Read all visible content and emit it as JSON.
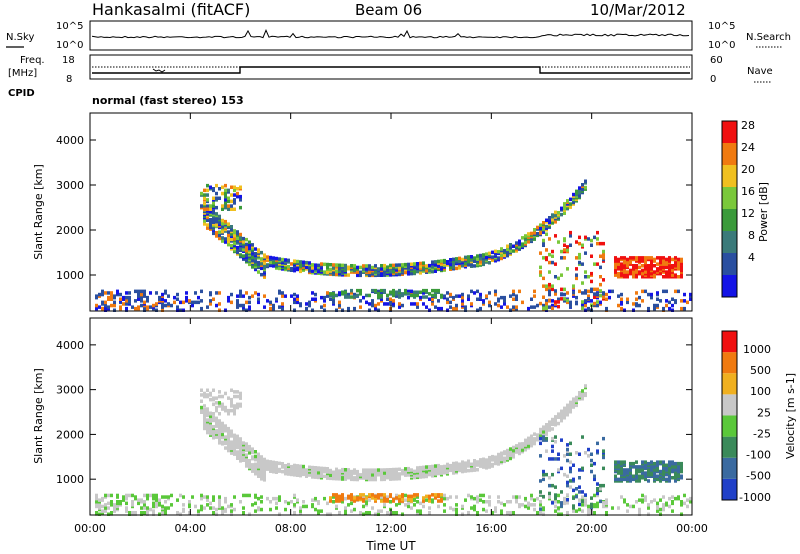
{
  "header": {
    "station": "Hankasalmi (fitACF)",
    "beam": "Beam 06",
    "date": "10/Mar/2012"
  },
  "noise_panel": {
    "left_label": "N.Sky",
    "right_label": "N.Search",
    "left_ticks": [
      "10^5",
      "10^0"
    ],
    "right_ticks": [
      "10^5",
      "10^0"
    ]
  },
  "freq_panel": {
    "left_label_line1": "Freq.",
    "left_label_line2": "[MHz]",
    "left_ticks": [
      "18",
      "8"
    ],
    "right_ticks": [
      "60",
      "0"
    ],
    "right_label": "Nave",
    "cpid_label": "CPID"
  },
  "mode_label": "normal (fast stereo) 153",
  "chart_data": [
    {
      "type": "heatmap",
      "panel": "power",
      "ylabel": "Slant Range [km]",
      "yticks": [
        "4000",
        "3000",
        "2000",
        "1000"
      ],
      "ylim": [
        200,
        4600
      ],
      "xlim_hours": [
        0,
        24
      ],
      "colorbar_label": "Power [dB]",
      "colorbar_ticks": [
        "28",
        "24",
        "20",
        "16",
        "12",
        "8",
        "4"
      ],
      "colors": [
        "#1414e6",
        "#2a4fa0",
        "#3a7a7a",
        "#3a9a3a",
        "#7ac83a",
        "#f0c020",
        "#f07a10",
        "#f01010"
      ],
      "features": [
        {
          "name": "main arc",
          "hours": [
            4.5,
            19.8
          ],
          "range_km": [
            1150,
            3100
          ]
        },
        {
          "name": "near-range echoes",
          "hours": [
            0.3,
            24
          ],
          "range_km": [
            200,
            600
          ]
        },
        {
          "name": "strong patches",
          "hours": [
            20.8,
            23.6
          ],
          "range_km": [
            1000,
            1450
          ]
        }
      ]
    },
    {
      "type": "heatmap",
      "panel": "velocity",
      "ylabel": "Slant Range [km]",
      "yticks": [
        "4000",
        "3000",
        "2000",
        "1000"
      ],
      "ylim": [
        200,
        4600
      ],
      "colorbar_label": "Velocity [m s-1]",
      "colorbar_ticks": [
        "1000",
        "500",
        "100",
        "25",
        "-25",
        "-100",
        "-500",
        "-1000"
      ],
      "colors": [
        "#2040c8",
        "#3a6aa0",
        "#3a8a5a",
        "#5ac83a",
        "#c8c8c8",
        "#f0b020",
        "#f07a10",
        "#f01010"
      ],
      "xlabel": "Time UT",
      "xticks": [
        "00:00",
        "04:00",
        "08:00",
        "12:00",
        "16:00",
        "20:00",
        "00:00"
      ]
    }
  ]
}
